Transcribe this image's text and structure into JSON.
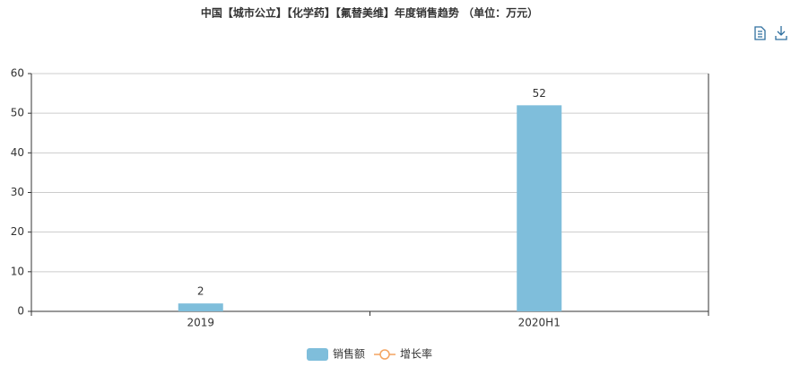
{
  "chart_data": {
    "type": "bar",
    "title": "中国【城市公立】【化学药】【氟替美维】年度销售趋势 （单位：万元）",
    "categories": [
      "2019",
      "2020H1"
    ],
    "series": [
      {
        "name": "销售额",
        "color": "#7fbedb",
        "type": "bar",
        "values": [
          2,
          52
        ]
      },
      {
        "name": "增长率",
        "color": "#f4a460",
        "type": "line",
        "values": [
          null,
          null
        ]
      }
    ],
    "ylim": [
      0,
      60
    ],
    "yticks": [
      0,
      10,
      20,
      30,
      40,
      50,
      60
    ],
    "grid": true
  }
}
